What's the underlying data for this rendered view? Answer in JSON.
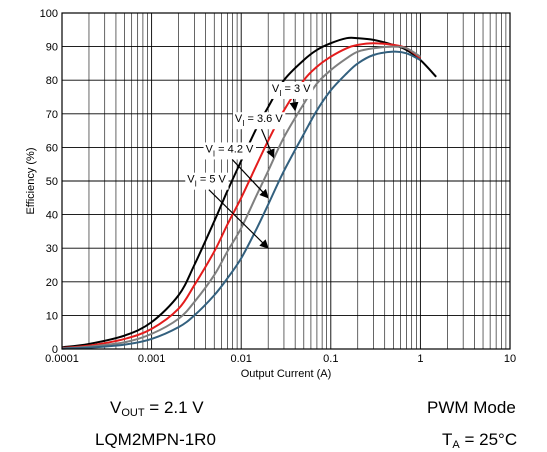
{
  "chart_data": {
    "type": "line",
    "xlabel": "Output Current (A)",
    "ylabel": "Efficiency (%)",
    "x_scale": "log",
    "xlim": [
      0.0001,
      10
    ],
    "ylim": [
      0,
      100
    ],
    "x_ticks": [
      "0.0001",
      "0.001",
      "0.01",
      "0.1",
      "1",
      "10"
    ],
    "y_ticks": [
      "0",
      "10",
      "20",
      "30",
      "40",
      "50",
      "60",
      "70",
      "80",
      "90",
      "100"
    ],
    "grid": true,
    "series": [
      {
        "name": "VI = 3 V",
        "label_main": "V",
        "label_sub": "I",
        "label_rest": " = 3 V",
        "color": "#000000",
        "x": [
          0.0001,
          0.0002,
          0.0005,
          0.001,
          0.002,
          0.003,
          0.005,
          0.007,
          0.01,
          0.015,
          0.02,
          0.03,
          0.05,
          0.07,
          0.1,
          0.15,
          0.2,
          0.3,
          0.5,
          0.7,
          1.0,
          1.5
        ],
        "y": [
          0.5,
          1.5,
          4,
          8,
          16,
          25,
          38,
          47,
          56,
          66,
          72,
          80,
          86,
          89,
          91,
          92.5,
          92.5,
          92,
          90.5,
          89,
          86,
          81
        ]
      },
      {
        "name": "VI = 3.6 V",
        "label_main": "V",
        "label_sub": "I",
        "label_rest": " = 3.6 V",
        "color": "#e41c1c",
        "x": [
          0.0001,
          0.0002,
          0.0005,
          0.001,
          0.002,
          0.003,
          0.005,
          0.007,
          0.01,
          0.015,
          0.02,
          0.03,
          0.05,
          0.07,
          0.1,
          0.15,
          0.2,
          0.3,
          0.5,
          0.7,
          1.0
        ],
        "y": [
          0.3,
          1,
          3,
          6,
          12,
          19,
          29,
          37,
          45,
          55,
          62,
          71,
          80,
          84,
          87,
          89.5,
          90.5,
          91,
          90.5,
          89.5,
          86.5
        ]
      },
      {
        "name": "VI = 4.2 V",
        "label_main": "V",
        "label_sub": "I",
        "label_rest": " = 4.2 V",
        "color": "#7f7f7f",
        "x": [
          0.0001,
          0.0002,
          0.0005,
          0.001,
          0.002,
          0.003,
          0.005,
          0.007,
          0.01,
          0.015,
          0.02,
          0.03,
          0.05,
          0.07,
          0.1,
          0.15,
          0.2,
          0.3,
          0.5,
          0.7,
          1.0
        ],
        "y": [
          0.2,
          0.7,
          2,
          4.5,
          9,
          14,
          22,
          29,
          36,
          46,
          53,
          63,
          73,
          79,
          83,
          86.5,
          88.5,
          89.5,
          90,
          89.5,
          87
        ]
      },
      {
        "name": "VI = 5 V",
        "label_main": "V",
        "label_sub": "I",
        "label_rest": " = 5 V",
        "color": "#33607e",
        "x": [
          0.0001,
          0.0002,
          0.0005,
          0.001,
          0.002,
          0.003,
          0.005,
          0.007,
          0.01,
          0.015,
          0.02,
          0.03,
          0.05,
          0.07,
          0.1,
          0.15,
          0.2,
          0.3,
          0.5,
          0.7,
          1.0
        ],
        "y": [
          0.1,
          0.4,
          1.3,
          3,
          6.5,
          10,
          16,
          21,
          27,
          36,
          43,
          53,
          64,
          71,
          77,
          82,
          85,
          87.5,
          88.5,
          88,
          86
        ]
      }
    ],
    "annotations": [
      {
        "series": 0,
        "label_x": 0.022,
        "label_y": 76.5,
        "arrow_to_x": 0.04,
        "arrow_to_y": 71
      },
      {
        "series": 1,
        "label_x": 0.0085,
        "label_y": 67.5,
        "arrow_to_x": 0.023,
        "arrow_to_y": 57
      },
      {
        "series": 2,
        "label_x": 0.004,
        "label_y": 58.5,
        "arrow_to_x": 0.02,
        "arrow_to_y": 45
      },
      {
        "series": 3,
        "label_x": 0.0025,
        "label_y": 49.5,
        "arrow_to_x": 0.02,
        "arrow_to_y": 30
      }
    ]
  },
  "conditions": {
    "vout": {
      "main": "V",
      "sub": "OUT",
      "rest": " = 2.1 V"
    },
    "inductor": "LQM2MPN-1R0",
    "mode": "PWM Mode",
    "ta": {
      "main": "T",
      "sub": "A",
      "rest": " = 25°C"
    }
  }
}
